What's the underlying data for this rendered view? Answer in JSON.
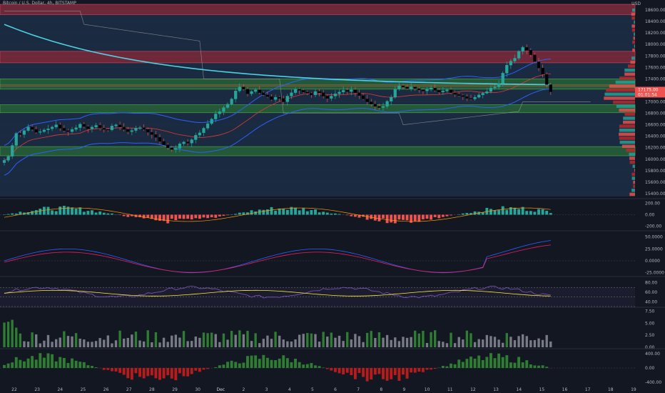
{
  "header": {
    "title": "Bitcoin / U.S. Dollar, 4h, BITSTAMP",
    "currency": "USD"
  },
  "colors": {
    "background": "#131722",
    "up": "#26a69a",
    "down": "#ef5350",
    "ema": "#4dd0e1",
    "bb": "#2962ff",
    "resistance_zone": "#b22833",
    "support_zone": "#2e7d32",
    "grid": "#1e222d",
    "text": "#b2b5be"
  },
  "price_label": {
    "price": "17175.00",
    "countdown": "01:01:54"
  },
  "chart_data": [
    {
      "type": "candlestick",
      "name": "price",
      "y_ticks": [
        "18600.00",
        "18400.00",
        "18200.00",
        "18000.00",
        "17800.00",
        "17600.00",
        "17400.00",
        "17200.00",
        "17000.00",
        "16800.00",
        "16600.00",
        "16400.00",
        "16200.00",
        "16000.00",
        "15800.00",
        "15600.00",
        "15400.00"
      ],
      "ylim": [
        15350,
        18700
      ],
      "x_ticks": [
        "22",
        "23",
        "24",
        "25",
        "26",
        "27",
        "28",
        "29",
        "30",
        "Dec",
        "2",
        "3",
        "4",
        "5",
        "6",
        "7",
        "8",
        "9",
        "10",
        "11",
        "12",
        "13",
        "14",
        "15",
        "16",
        "17",
        "18",
        "19"
      ],
      "closes": [
        15980,
        16050,
        16240,
        16450,
        16430,
        16500,
        16560,
        16520,
        16470,
        16480,
        16510,
        16530,
        16560,
        16600,
        16540,
        16500,
        16480,
        16520,
        16550,
        16610,
        16570,
        16530,
        16560,
        16590,
        16540,
        16520,
        16510,
        16580,
        16600,
        16560,
        16520,
        16480,
        16500,
        16540,
        16550,
        16520,
        16470,
        16430,
        16380,
        16310,
        16250,
        16200,
        16170,
        16190,
        16270,
        16300,
        16280,
        16340,
        16420,
        16460,
        16540,
        16620,
        16700,
        16790,
        16830,
        16900,
        16960,
        17050,
        17190,
        17260,
        17220,
        17140,
        17180,
        17210,
        17160,
        17120,
        17090,
        17040,
        17080,
        17060,
        17000,
        17100,
        17160,
        17220,
        17200,
        17170,
        17150,
        17120,
        17180,
        17160,
        17100,
        17060,
        17100,
        17140,
        17170,
        17200,
        17180,
        17210,
        17160,
        17110,
        17050,
        17000,
        16960,
        16920,
        16900,
        16920,
        17010,
        17080,
        17220,
        17280,
        17260,
        17230,
        17260,
        17230,
        17210,
        17190,
        17220,
        17240,
        17200,
        17170,
        17190,
        17210,
        17160,
        17130,
        17110,
        17090,
        17060,
        17050,
        17080,
        17120,
        17150,
        17180,
        17240,
        17260,
        17320,
        17500,
        17640,
        17710,
        17760,
        17880,
        17950,
        17900,
        17820,
        17700,
        17590,
        17480,
        17300,
        17175
      ],
      "zones_resistance": [
        [
          18520,
          18700
        ],
        [
          17680,
          17880
        ],
        [
          17270,
          17300
        ]
      ],
      "zones_support": [
        [
          17220,
          17400
        ],
        [
          16810,
          16950
        ],
        [
          16060,
          16220
        ]
      ],
      "indicators": [
        "EMA",
        "Bollinger Bands",
        "Volume Profile"
      ]
    },
    {
      "type": "bar",
      "name": "MACD histogram",
      "y_ticks": [
        "200.00",
        "0.00",
        "-200.00"
      ],
      "ylim": [
        -260,
        260
      ]
    },
    {
      "type": "line",
      "name": "oscillator",
      "y_ticks": [
        "50.0000",
        "25.0000",
        "0.0000",
        "-25.0000"
      ],
      "ylim": [
        -30,
        60
      ]
    },
    {
      "type": "line",
      "name": "RSI",
      "y_ticks": [
        "80.00",
        "60.00",
        "40.00"
      ],
      "ylim": [
        30,
        90
      ]
    },
    {
      "type": "bar",
      "name": "volume",
      "y_ticks": [
        "7.50",
        "5.00",
        "2.50",
        "0.00"
      ],
      "ylim": [
        0,
        8
      ]
    },
    {
      "type": "bar",
      "name": "momentum",
      "y_ticks": [
        "400.00",
        "0.00",
        "-400.00"
      ],
      "ylim": [
        -500,
        500
      ]
    }
  ]
}
